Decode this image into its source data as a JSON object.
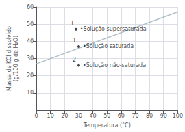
{
  "chart_data": {
    "type": "line",
    "xlabel": "Temperatura (°C)",
    "ylabel": "Massa de KCl dissolvido\n(g/100 g de H₂O)",
    "xlim": [
      0,
      100
    ],
    "ylim": [
      0,
      60
    ],
    "xticks": [
      0,
      10,
      20,
      30,
      40,
      50,
      60,
      70,
      80,
      90,
      100
    ],
    "yticks": [
      10,
      20,
      30,
      40,
      50,
      60
    ],
    "grid": true,
    "series": [
      {
        "type": "line",
        "color": "#b0bec8",
        "x": [
          0,
          100
        ],
        "values": [
          27,
          57
        ]
      },
      {
        "type": "scatter",
        "color": "#111111",
        "x": [
          28,
          30,
          30
        ],
        "values": [
          47,
          37,
          26
        ],
        "numbers": [
          "3",
          "1",
          "2"
        ],
        "annotations": [
          "•Solução supersaturada",
          "•Solução saturada",
          "•Solução não-saturada"
        ]
      }
    ]
  }
}
